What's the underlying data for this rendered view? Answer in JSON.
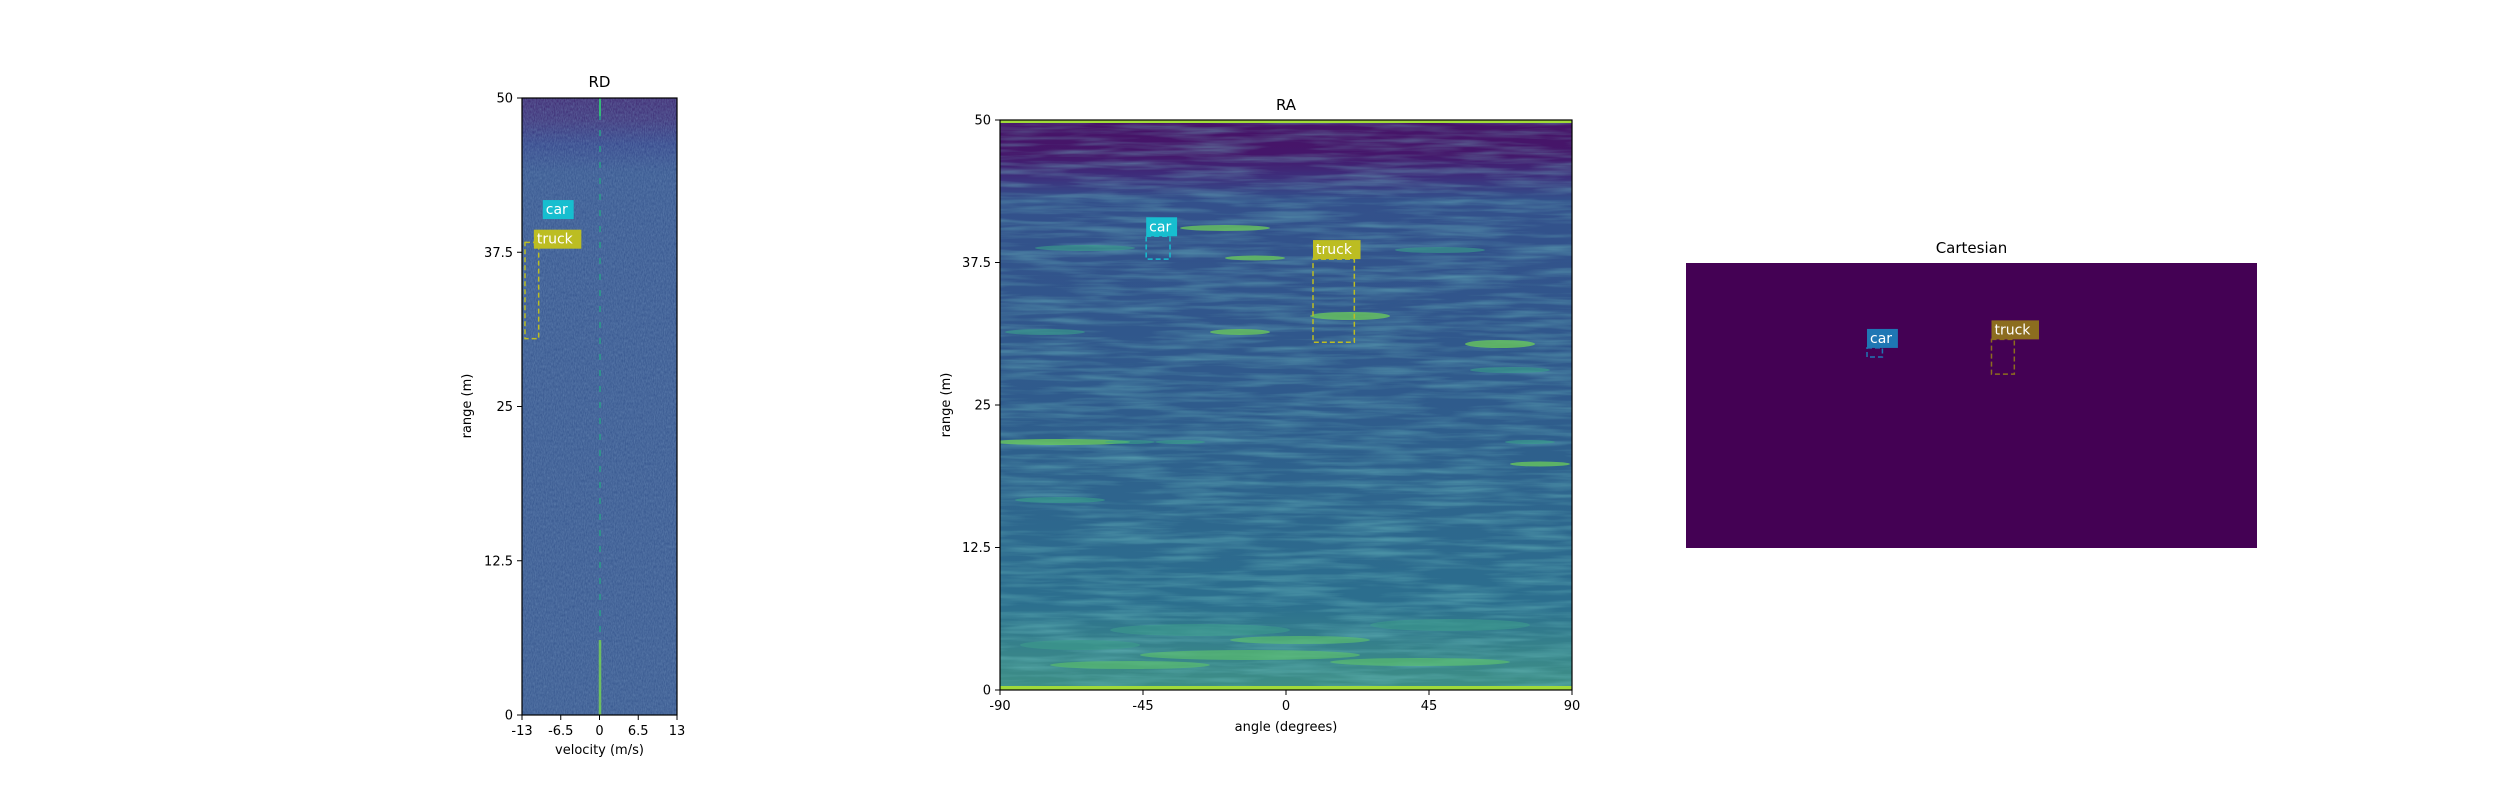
{
  "chart_data": [
    {
      "type": "heatmap",
      "title": "RD",
      "xlabel": "velocity (m/s)",
      "ylabel": "range (m)",
      "xlim": [
        -13,
        13
      ],
      "ylim": [
        0,
        50
      ],
      "xticks": [
        "-13",
        "-6.5",
        "0",
        "6.5",
        "13"
      ],
      "xtick_values": [
        -13,
        -6.5,
        0,
        6.5,
        13
      ],
      "yticks": [
        "0",
        "12.5",
        "25",
        "37.5",
        "50"
      ],
      "ytick_values": [
        0,
        12.5,
        25,
        37.5,
        50
      ],
      "colormap": "viridis",
      "annotations": [
        {
          "label": "car",
          "color": "#17becf",
          "box_visible": false,
          "label_x": -7.5,
          "label_y": 41
        },
        {
          "label": "truck",
          "color": "#bcbd22",
          "x0": -12.5,
          "x1": -10.2,
          "y0": 30.5,
          "y1": 38.3,
          "label_x": -9,
          "label_y": 38.6
        }
      ]
    },
    {
      "type": "heatmap",
      "title": "RA",
      "xlabel": "angle (degrees)",
      "ylabel": "range (m)",
      "xlim": [
        -90,
        90
      ],
      "ylim": [
        0,
        50
      ],
      "xticks": [
        "-90",
        "-45",
        "0",
        "45",
        "90"
      ],
      "xtick_values": [
        -90,
        -45,
        0,
        45,
        90
      ],
      "yticks": [
        "0",
        "12.5",
        "25",
        "37.5",
        "50"
      ],
      "ytick_values": [
        0,
        12.5,
        25,
        37.5,
        50
      ],
      "colormap": "viridis",
      "annotations": [
        {
          "label": "car",
          "color": "#17becf",
          "x0": -44,
          "x1": -36.5,
          "y0": 37.8,
          "y1": 39.8
        },
        {
          "label": "truck",
          "color": "#bcbd22",
          "x0": 8.5,
          "x1": 21.5,
          "y0": 30.5,
          "y1": 37.8
        }
      ]
    },
    {
      "type": "heatmap",
      "title": "Cartesian",
      "xlabel": "",
      "ylabel": "",
      "xlim": [
        0,
        100
      ],
      "ylim": [
        0,
        50
      ],
      "axes_visible": false,
      "background_color": "#440154",
      "annotations": [
        {
          "label": "car",
          "color": "#1f77b4",
          "x0": 31.7,
          "x1": 34.4,
          "y0": 33.5,
          "y1": 35.1
        },
        {
          "label": "truck",
          "color": "#8c6d1f",
          "x0": 53.5,
          "x1": 57.5,
          "y0": 30.5,
          "y1": 36.6
        }
      ]
    }
  ]
}
